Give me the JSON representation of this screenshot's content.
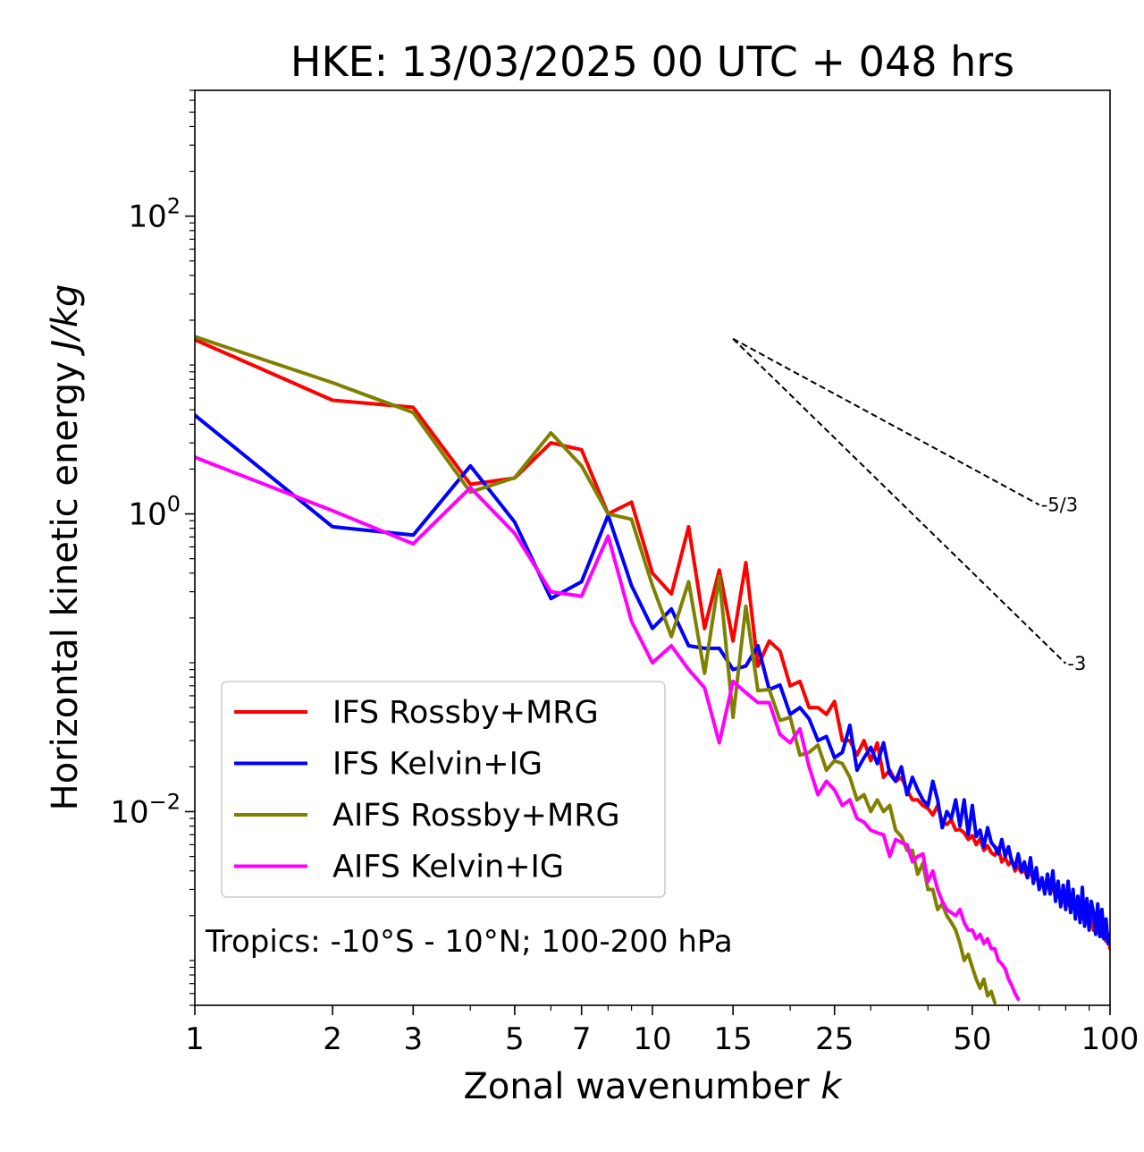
{
  "chart_data": {
    "type": "line",
    "title": "HKE: 13/03/2025 00 UTC + 048 hrs",
    "xlabel": "Zonal wavenumber",
    "xlabel_var": "k",
    "ylabel": "Horizontal kinetic energy",
    "ylabel_unit": "J/kg",
    "xscale": "log",
    "yscale": "log",
    "xlim": [
      1,
      100
    ],
    "ylim": [
      0.0005,
      700
    ],
    "x_ticks": [
      {
        "value": 1,
        "label": "1"
      },
      {
        "value": 2,
        "label": "2"
      },
      {
        "value": 3,
        "label": "3"
      },
      {
        "value": 5,
        "label": "5"
      },
      {
        "value": 7,
        "label": "7"
      },
      {
        "value": 10,
        "label": "10"
      },
      {
        "value": 15,
        "label": "15"
      },
      {
        "value": 25,
        "label": "25"
      },
      {
        "value": 50,
        "label": "50"
      },
      {
        "value": 100,
        "label": "100"
      }
    ],
    "y_ticks": [
      {
        "value": 100,
        "base": "10",
        "exp": "2"
      },
      {
        "value": 1,
        "base": "10",
        "exp": "0"
      },
      {
        "value": 0.01,
        "base": "10",
        "exp": "−2"
      }
    ],
    "grid": false,
    "legend_position": "lower-left",
    "annotation": "Tropics: -10°S - 10°N; 100-200 hPa",
    "reference_lines": [
      {
        "label": "-5/3",
        "slope": -1.6667,
        "x_start": 15,
        "y_start": 15,
        "x_end": 70
      },
      {
        "label": "-3",
        "slope": -3,
        "x_start": 15,
        "y_start": 15,
        "x_end": 80
      }
    ],
    "series": [
      {
        "name": "IFS Rossby+MRG",
        "color": "#ff0000",
        "x": [
          1,
          2,
          3,
          4,
          5,
          6,
          7,
          8,
          9,
          10,
          11,
          12,
          13,
          14,
          15,
          16,
          17,
          18,
          19,
          20,
          21,
          22,
          23,
          24,
          25,
          26,
          27,
          28,
          29,
          30,
          31,
          32,
          33,
          34,
          35,
          36,
          37,
          38,
          39,
          40,
          41,
          42,
          43,
          44,
          45,
          46,
          47,
          48,
          49,
          50,
          51,
          52,
          53,
          54,
          55,
          56,
          57,
          58,
          59,
          60,
          61,
          62,
          63,
          64,
          65,
          66,
          67,
          68,
          69,
          70,
          71,
          72,
          73,
          74,
          75,
          76,
          77,
          78,
          79,
          80,
          81,
          82,
          83,
          84,
          85,
          86,
          87,
          88,
          89,
          90,
          91,
          92,
          93,
          94,
          95,
          96,
          97,
          98,
          99,
          100
        ],
        "y": [
          14.8,
          5.8,
          5.2,
          1.58,
          1.74,
          3.0,
          2.7,
          1.0,
          1.2,
          0.4,
          0.29,
          0.82,
          0.17,
          0.42,
          0.14,
          0.47,
          0.095,
          0.14,
          0.12,
          0.07,
          0.075,
          0.05,
          0.05,
          0.045,
          0.055,
          0.03,
          0.03,
          0.024,
          0.03,
          0.022,
          0.029,
          0.017,
          0.019,
          0.016,
          0.017,
          0.014,
          0.012,
          0.012,
          0.011,
          0.0105,
          0.0095,
          0.011,
          0.0085,
          0.0082,
          0.0088,
          0.0075,
          0.0076,
          0.0072,
          0.0065,
          0.0069,
          0.006,
          0.0066,
          0.0055,
          0.0059,
          0.0053,
          0.0051,
          0.0057,
          0.0046,
          0.0049,
          0.0044,
          0.0047,
          0.004,
          0.0043,
          0.0039,
          0.0041,
          0.0036,
          0.004,
          0.0035,
          0.0037,
          0.0032,
          0.0035,
          0.003,
          0.0033,
          0.0029,
          0.0031,
          0.0027,
          0.0029,
          0.0025,
          0.0027,
          0.0023,
          0.0026,
          0.0022,
          0.0024,
          0.0021,
          0.0023,
          0.002,
          0.0021,
          0.0018,
          0.002,
          0.0017,
          0.0019,
          0.0016,
          0.0018,
          0.00155,
          0.0017,
          0.00145,
          0.0016,
          0.00135,
          0.0015,
          0.0012
        ]
      },
      {
        "name": "IFS Kelvin+IG",
        "color": "#0000ff",
        "x": [
          1,
          2,
          3,
          4,
          5,
          6,
          7,
          8,
          9,
          10,
          11,
          12,
          13,
          14,
          15,
          16,
          17,
          18,
          19,
          20,
          21,
          22,
          23,
          24,
          25,
          26,
          27,
          28,
          29,
          30,
          31,
          32,
          33,
          34,
          35,
          36,
          37,
          38,
          39,
          40,
          41,
          42,
          43,
          44,
          45,
          46,
          47,
          48,
          49,
          50,
          51,
          52,
          53,
          54,
          55,
          56,
          57,
          58,
          59,
          60,
          61,
          62,
          63,
          64,
          65,
          66,
          67,
          68,
          69,
          70,
          71,
          72,
          73,
          74,
          75,
          76,
          77,
          78,
          79,
          80,
          81,
          82,
          83,
          84,
          85,
          86,
          87,
          88,
          89,
          90,
          91,
          92,
          93,
          94,
          95,
          96,
          97,
          98,
          99,
          100
        ],
        "y": [
          4.6,
          0.82,
          0.72,
          2.1,
          0.88,
          0.27,
          0.35,
          0.98,
          0.33,
          0.17,
          0.23,
          0.13,
          0.125,
          0.125,
          0.09,
          0.095,
          0.13,
          0.066,
          0.071,
          0.045,
          0.05,
          0.042,
          0.03,
          0.032,
          0.023,
          0.025,
          0.038,
          0.019,
          0.023,
          0.027,
          0.021,
          0.029,
          0.018,
          0.016,
          0.02,
          0.013,
          0.017,
          0.014,
          0.012,
          0.011,
          0.016,
          0.012,
          0.0078,
          0.01,
          0.009,
          0.012,
          0.008,
          0.012,
          0.007,
          0.011,
          0.0068,
          0.0075,
          0.0058,
          0.0078,
          0.0062,
          0.0058,
          0.0052,
          0.0065,
          0.005,
          0.0058,
          0.0046,
          0.0042,
          0.0052,
          0.004,
          0.0046,
          0.0036,
          0.0049,
          0.0033,
          0.0042,
          0.003,
          0.0036,
          0.0028,
          0.0038,
          0.0028,
          0.004,
          0.0025,
          0.0034,
          0.0023,
          0.0032,
          0.0022,
          0.0034,
          0.0021,
          0.003,
          0.0019,
          0.0027,
          0.0018,
          0.0031,
          0.0017,
          0.0026,
          0.0016,
          0.0025,
          0.0021,
          0.0015,
          0.0024,
          0.00145,
          0.0022,
          0.0014,
          0.0019,
          0.0013,
          0.0015
        ]
      },
      {
        "name": "AIFS Rossby+MRG",
        "color": "#808000",
        "x": [
          1,
          2,
          3,
          4,
          5,
          6,
          7,
          8,
          9,
          10,
          11,
          12,
          13,
          14,
          15,
          16,
          17,
          18,
          19,
          20,
          21,
          22,
          23,
          24,
          25,
          26,
          27,
          28,
          29,
          30,
          31,
          32,
          33,
          34,
          35,
          36,
          37,
          38,
          39,
          40,
          41,
          42,
          43,
          44,
          45,
          46,
          47,
          48,
          49,
          50,
          51,
          52,
          53,
          54,
          55,
          56
        ],
        "y": [
          15.5,
          7.6,
          4.8,
          1.4,
          1.75,
          3.5,
          2.1,
          1.0,
          0.92,
          0.33,
          0.15,
          0.35,
          0.085,
          0.38,
          0.043,
          0.24,
          0.065,
          0.066,
          0.041,
          0.043,
          0.024,
          0.025,
          0.028,
          0.019,
          0.022,
          0.021,
          0.017,
          0.012,
          0.013,
          0.01,
          0.012,
          0.01,
          0.011,
          0.0075,
          0.0068,
          0.0055,
          0.0055,
          0.0038,
          0.0045,
          0.003,
          0.003,
          0.0022,
          0.0024,
          0.002,
          0.0018,
          0.0016,
          0.0013,
          0.001,
          0.0011,
          0.0009,
          0.00075,
          0.00065,
          0.00075,
          0.00058,
          0.00062,
          0.00052
        ]
      },
      {
        "name": "AIFS Kelvin+IG",
        "color": "#ff00ff",
        "x": [
          1,
          2,
          3,
          4,
          5,
          6,
          7,
          8,
          9,
          10,
          11,
          12,
          13,
          14,
          15,
          16,
          17,
          18,
          19,
          20,
          21,
          22,
          23,
          24,
          25,
          26,
          27,
          28,
          29,
          30,
          31,
          32,
          33,
          34,
          35,
          36,
          37,
          38,
          39,
          40,
          41,
          42,
          43,
          44,
          45,
          46,
          47,
          48,
          49,
          50,
          51,
          52,
          53,
          54,
          55,
          56,
          57,
          58,
          59,
          60,
          61,
          62,
          63
        ],
        "y": [
          2.4,
          1.05,
          0.63,
          1.5,
          0.74,
          0.3,
          0.28,
          0.71,
          0.19,
          0.1,
          0.13,
          0.09,
          0.068,
          0.029,
          0.075,
          0.063,
          0.054,
          0.054,
          0.033,
          0.029,
          0.036,
          0.02,
          0.013,
          0.016,
          0.014,
          0.011,
          0.012,
          0.009,
          0.0085,
          0.0075,
          0.0072,
          0.007,
          0.005,
          0.0065,
          0.0062,
          0.006,
          0.0046,
          0.005,
          0.0052,
          0.0034,
          0.004,
          0.003,
          0.0025,
          0.0022,
          0.0021,
          0.002,
          0.0022,
          0.0018,
          0.0016,
          0.0016,
          0.0014,
          0.0015,
          0.0013,
          0.0014,
          0.0012,
          0.0012,
          0.001,
          0.00095,
          0.00088,
          0.00075,
          0.00068,
          0.0006,
          0.00055
        ]
      }
    ]
  }
}
